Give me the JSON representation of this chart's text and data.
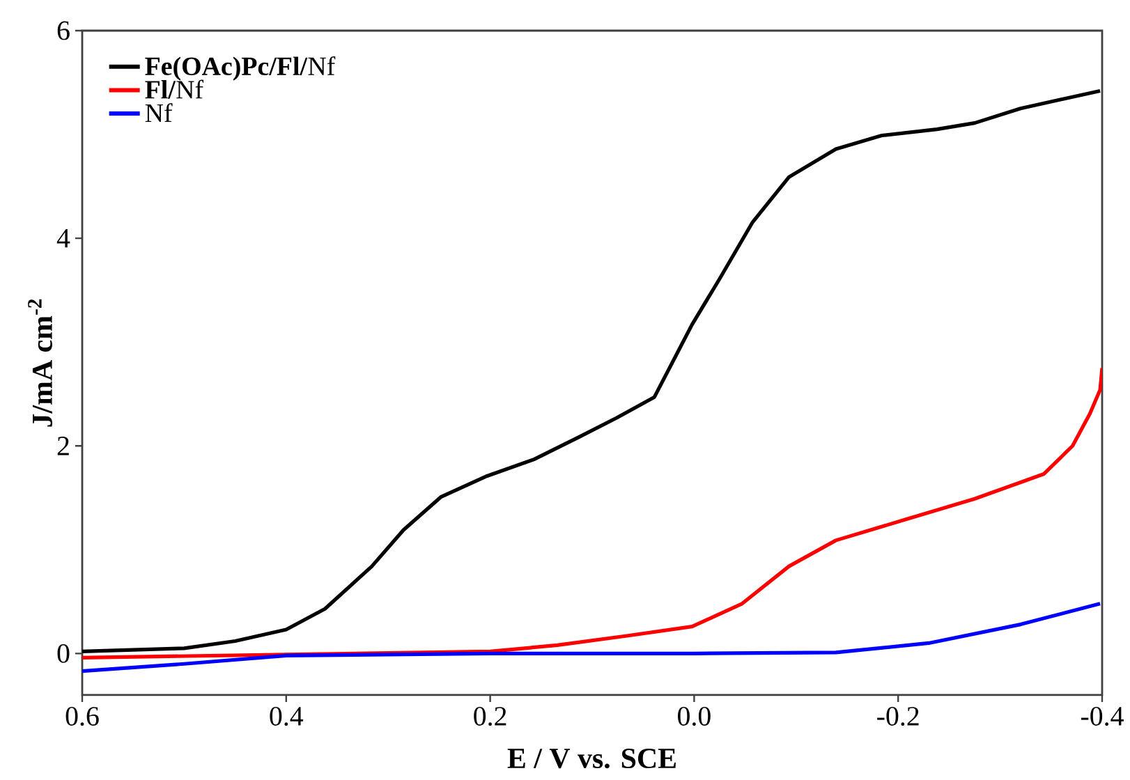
{
  "chart_data": {
    "type": "line",
    "xlabel": "E / V vs. SCE",
    "ylabel": "J/mA cm$^{-2}$",
    "xlim": [
      0.6,
      -0.4
    ],
    "xticks": [
      {
        "value": 0.6,
        "label": "0.6"
      },
      {
        "value": 0.4,
        "label": "0.4"
      },
      {
        "value": 0.2,
        "label": "0.2"
      },
      {
        "value": 0.0,
        "label": "0.0"
      },
      {
        "value": -0.2,
        "label": "-0.2"
      },
      {
        "value": -0.4,
        "label": "-0.4"
      }
    ],
    "ylim": [
      -0.4,
      6
    ],
    "yticks": [
      0,
      2,
      4,
      6
    ],
    "grid": false,
    "legend": "top left",
    "marker": "none",
    "line_style": "solid",
    "series": [
      {
        "name": "**Fe(OAc)Pc/Fl/**Nf",
        "color": "#000000",
        "x": [
          0.6,
          0.5,
          0.45,
          0.4,
          0.362,
          0.316,
          0.285,
          0.248,
          0.203,
          0.157,
          0.112,
          0.076,
          0.039,
          0.002,
          -0.025,
          -0.057,
          -0.093,
          -0.139,
          -0.184,
          -0.238,
          -0.275,
          -0.32,
          -0.398
        ],
        "values": [
          0.02,
          0.05,
          0.12,
          0.23,
          0.43,
          0.84,
          1.19,
          1.51,
          1.71,
          1.87,
          2.09,
          2.27,
          2.47,
          3.17,
          3.61,
          4.15,
          4.59,
          4.86,
          4.99,
          5.05,
          5.11,
          5.25,
          5.42
        ]
      },
      {
        "name": "**Fl/**Nf",
        "color": "#ff0000",
        "x": [
          0.6,
          0.4,
          0.2,
          0.134,
          0.066,
          0.002,
          -0.047,
          -0.093,
          -0.139,
          -0.207,
          -0.275,
          -0.343,
          -0.371,
          -0.388,
          -0.398,
          -0.4
        ],
        "values": [
          -0.04,
          -0.01,
          0.02,
          0.08,
          0.17,
          0.26,
          0.48,
          0.84,
          1.09,
          1.29,
          1.49,
          1.73,
          2.0,
          2.31,
          2.54,
          2.75
        ]
      },
      {
        "name": "Nf",
        "color": "#0000ff",
        "x": [
          0.6,
          0.5,
          0.4,
          0.2,
          0.0,
          -0.139,
          -0.23,
          -0.32,
          -0.398
        ],
        "values": [
          -0.17,
          -0.1,
          -0.02,
          0.0,
          0.0,
          0.01,
          0.1,
          0.28,
          0.48
        ]
      }
    ]
  }
}
